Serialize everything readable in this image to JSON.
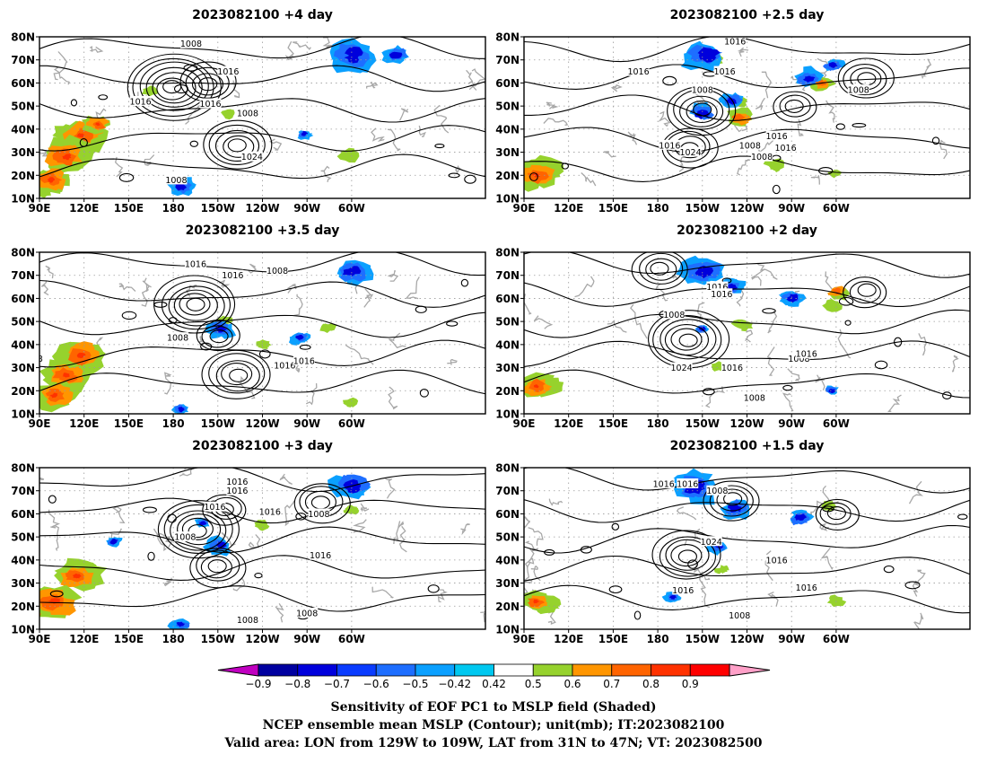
{
  "panels": [
    {
      "title": "2023082100 +4 day",
      "col": 0,
      "row": 0,
      "seed": 11,
      "red": [
        [
          118,
          37,
          1.0
        ],
        [
          108,
          28,
          1.1
        ],
        [
          98,
          18,
          0.85
        ],
        [
          129,
          42,
          0.55
        ]
      ],
      "blue": [
        [
          -60,
          72,
          0.9
        ],
        [
          -30,
          72,
          0.5
        ],
        [
          -175,
          15,
          0.5
        ],
        [
          -92,
          38,
          0.3
        ]
      ],
      "green": [
        [
          88,
          15,
          0.8
        ],
        [
          -62,
          29,
          0.4
        ],
        [
          165,
          57,
          0.3
        ],
        [
          -143,
          47,
          0.3
        ],
        [
          42,
          13,
          0.3
        ]
      ],
      "lows": [
        [
          180,
          58,
          3.6
        ],
        [
          -157,
          60,
          2.0
        ]
      ],
      "highs": [
        [
          -137,
          33,
          2.6
        ]
      ],
      "labels": [
        [
          -168,
          77,
          "1008"
        ],
        [
          -143,
          65,
          "1016"
        ],
        [
          -155,
          51,
          "1016"
        ],
        [
          158,
          52,
          "1016"
        ],
        [
          -130,
          47,
          "1008"
        ],
        [
          -127,
          28,
          "1024"
        ],
        [
          -178,
          18,
          "1008"
        ],
        [
          48,
          48,
          "1008"
        ],
        [
          10,
          55,
          "1016"
        ]
      ]
    },
    {
      "title": "2023082100 +2.5 day",
      "col": 1,
      "row": 0,
      "seed": 23,
      "red": [
        [
          98,
          20,
          0.95
        ],
        [
          -125,
          45,
          0.5
        ],
        [
          -70,
          60,
          0.45
        ]
      ],
      "blue": [
        [
          -147,
          72,
          0.9
        ],
        [
          -150,
          47,
          0.6
        ],
        [
          -78,
          62,
          0.5
        ],
        [
          -130,
          52,
          0.4
        ],
        [
          -62,
          68,
          0.4
        ]
      ],
      "green": [
        [
          104,
          22,
          0.8
        ],
        [
          -100,
          24,
          0.4
        ],
        [
          -125,
          52,
          0.3
        ],
        [
          -60,
          21,
          0.3
        ],
        [
          -143,
          70,
          0.4
        ]
      ],
      "lows": [
        [
          -150,
          48,
          2.4
        ],
        [
          -88,
          50,
          1.6
        ],
        [
          -40,
          62,
          1.8
        ]
      ],
      "highs": [
        [
          -159,
          32,
          2.2
        ]
      ],
      "labels": [
        [
          -128,
          78,
          "1016"
        ],
        [
          167,
          65,
          "1016"
        ],
        [
          -135,
          65,
          "1016"
        ],
        [
          -150,
          57,
          "1008"
        ],
        [
          -172,
          33,
          "1016"
        ],
        [
          -158,
          30,
          "1024"
        ],
        [
          -118,
          33,
          "1008"
        ],
        [
          -100,
          37,
          "1016"
        ],
        [
          -94,
          32,
          "1016"
        ],
        [
          -45,
          57,
          "1008"
        ],
        [
          -110,
          28,
          "1008"
        ]
      ]
    },
    {
      "title": "2023082100 +3.5 day",
      "col": 0,
      "row": 1,
      "seed": 37,
      "red": [
        [
          118,
          35,
          1.0
        ],
        [
          108,
          27,
          0.9
        ],
        [
          100,
          18,
          0.8
        ],
        [
          50,
          45,
          0.35
        ]
      ],
      "blue": [
        [
          -60,
          72,
          0.7
        ],
        [
          -148,
          47,
          0.5
        ],
        [
          -95,
          43,
          0.35
        ],
        [
          -175,
          12,
          0.3
        ]
      ],
      "green": [
        [
          92,
          18,
          0.6
        ],
        [
          -120,
          40,
          0.35
        ],
        [
          -145,
          50,
          0.3
        ],
        [
          -75,
          47,
          0.3
        ],
        [
          -60,
          15,
          0.3
        ]
      ],
      "lows": [
        [
          -165,
          57,
          2.8
        ],
        [
          -150,
          44,
          1.6
        ]
      ],
      "highs": [
        [
          -137,
          27,
          2.4
        ]
      ],
      "labels": [
        [
          -165,
          75,
          "1016"
        ],
        [
          -140,
          70,
          "1016"
        ],
        [
          -110,
          72,
          "1008"
        ],
        [
          -177,
          43,
          "1008"
        ],
        [
          -105,
          31,
          "1016"
        ],
        [
          -92,
          33,
          "1016"
        ],
        [
          85,
          34,
          "1008"
        ],
        [
          30,
          33,
          "1008"
        ]
      ]
    },
    {
      "title": "2023082100 +2 day",
      "col": 1,
      "row": 1,
      "seed": 41,
      "red": [
        [
          98,
          22,
          0.75
        ],
        [
          -60,
          63,
          0.4
        ]
      ],
      "blue": [
        [
          -150,
          72,
          0.9
        ],
        [
          -130,
          65,
          0.5
        ],
        [
          -90,
          60,
          0.5
        ],
        [
          -150,
          47,
          0.3
        ],
        [
          -63,
          20,
          0.3
        ]
      ],
      "green": [
        [
          104,
          23,
          0.7
        ],
        [
          -122,
          49,
          0.4
        ],
        [
          -62,
          58,
          0.4
        ],
        [
          -140,
          30,
          0.3
        ]
      ],
      "lows": [
        [
          -178,
          73,
          2.0
        ],
        [
          -40,
          63,
          1.6
        ]
      ],
      "highs": [
        [
          -160,
          42,
          2.8
        ]
      ],
      "labels": [
        [
          -140,
          65,
          "1016"
        ],
        [
          -137,
          62,
          "1016"
        ],
        [
          -169,
          53,
          "1008"
        ],
        [
          -130,
          30,
          "1016"
        ],
        [
          -164,
          30,
          "1024"
        ],
        [
          -85,
          34,
          "1008"
        ],
        [
          -80,
          36,
          "1016"
        ],
        [
          -115,
          17,
          "1008"
        ]
      ]
    },
    {
      "title": "2023082100 +3 day",
      "col": 0,
      "row": 2,
      "seed": 53,
      "red": [
        [
          115,
          33,
          0.9
        ],
        [
          100,
          22,
          1.1
        ],
        [
          82,
          18,
          0.7
        ]
      ],
      "blue": [
        [
          -60,
          72,
          0.8
        ],
        [
          -148,
          47,
          0.55
        ],
        [
          -160,
          56,
          0.3
        ],
        [
          -175,
          12,
          0.35
        ],
        [
          140,
          48,
          0.3
        ]
      ],
      "green": [
        [
          93,
          22,
          0.7
        ],
        [
          -120,
          55,
          0.3
        ],
        [
          50,
          52,
          0.3
        ],
        [
          -60,
          62,
          0.3
        ]
      ],
      "lows": [
        [
          -163,
          53,
          3.2
        ],
        [
          -80,
          65,
          1.8
        ]
      ],
      "highs": [
        [
          -150,
          37,
          2.2
        ],
        [
          -145,
          62,
          1.5
        ]
      ],
      "labels": [
        [
          -137,
          74,
          "1016"
        ],
        [
          -137,
          70,
          "1016"
        ],
        [
          -152,
          63,
          "1016"
        ],
        [
          -115,
          61,
          "1016"
        ],
        [
          -172,
          50,
          "1008"
        ],
        [
          -82,
          60,
          "1008"
        ],
        [
          -81,
          42,
          "1016"
        ],
        [
          -90,
          17,
          "1008"
        ],
        [
          -130,
          14,
          "1008"
        ]
      ]
    },
    {
      "title": "2023082100 +1.5 day",
      "col": 1,
      "row": 2,
      "seed": 67,
      "red": [
        [
          98,
          22,
          0.6
        ],
        [
          60,
          14,
          0.5
        ]
      ],
      "blue": [
        [
          -155,
          72,
          0.9
        ],
        [
          -128,
          62,
          0.6
        ],
        [
          -84,
          58,
          0.5
        ],
        [
          -138,
          46,
          0.4
        ],
        [
          -170,
          24,
          0.3
        ]
      ],
      "green": [
        [
          102,
          20,
          0.6
        ],
        [
          -60,
          22,
          0.3
        ],
        [
          -137,
          36,
          0.3
        ],
        [
          -65,
          63,
          0.3
        ]
      ],
      "lows": [
        [
          -130,
          66,
          2.0
        ],
        [
          -60,
          60,
          1.6
        ]
      ],
      "highs": [
        [
          -160,
          42,
          2.6
        ]
      ],
      "labels": [
        [
          -176,
          73,
          "1016"
        ],
        [
          -160,
          73,
          "1016"
        ],
        [
          -140,
          70,
          "1008"
        ],
        [
          -144,
          48,
          "1024"
        ],
        [
          -163,
          27,
          "1016"
        ],
        [
          -100,
          40,
          "1016"
        ],
        [
          -80,
          28,
          "1016"
        ],
        [
          -125,
          16,
          "1008"
        ]
      ]
    }
  ],
  "axes": {
    "lat_labels": [
      "80N",
      "70N",
      "60N",
      "50N",
      "40N",
      "30N",
      "20N",
      "10N"
    ],
    "lat_values": [
      80,
      70,
      60,
      50,
      40,
      30,
      20,
      10
    ],
    "lon_labels": [
      "90E",
      "120E",
      "150E",
      "180",
      "150W",
      "120W",
      "90W",
      "60W"
    ],
    "lon_values": [
      90,
      120,
      150,
      180,
      210,
      240,
      270,
      300
    ],
    "lon_range": [
      90,
      390
    ],
    "lat_range": [
      10,
      80
    ]
  },
  "colorbar": {
    "labels": [
      "−0.9",
      "−0.8",
      "−0.7",
      "−0.6",
      "−0.5",
      "−0.42",
      "0.42",
      "0.5",
      "0.6",
      "0.7",
      "0.8",
      "0.9"
    ],
    "colors": [
      "#c000c0",
      "#0000a0",
      "#0000dc",
      "#0a3cff",
      "#1e6eff",
      "#0ba0ff",
      "#00c8f0",
      "#ffffff",
      "#96d22d",
      "#ff9600",
      "#ff6400",
      "#ff3200",
      "#ff0000",
      "#ffa0c8"
    ]
  },
  "caption": {
    "line1": "Sensitivity of EOF PC1 to MSLP field (Shaded)",
    "line2": "NCEP ensemble mean MSLP (Contour); unit(mb); IT:2023082100",
    "line3": "Valid area: LON from 129W to 109W, LAT from 31N to 47N; VT: 2023082500"
  }
}
